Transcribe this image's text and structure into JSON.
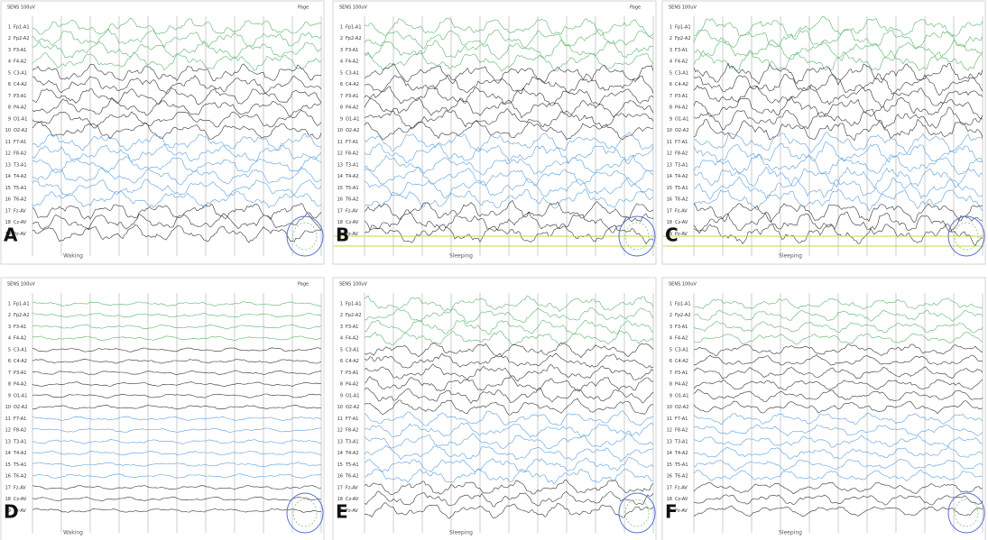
{
  "header": {
    "sens": "SENS 100uV",
    "page": "Page"
  },
  "channels": [
    {
      "n": "1",
      "label": "Fp1-A1"
    },
    {
      "n": "2",
      "label": "Fp2-A2"
    },
    {
      "n": "3",
      "label": "F3-A1"
    },
    {
      "n": "4",
      "label": "F4-A2"
    },
    {
      "n": "5",
      "label": "C3-A1"
    },
    {
      "n": "6",
      "label": "C4-A2"
    },
    {
      "n": "7",
      "label": "P3-A1"
    },
    {
      "n": "8",
      "label": "P4-A2"
    },
    {
      "n": "9",
      "label": "O1-A1"
    },
    {
      "n": "10",
      "label": "O2-A2"
    },
    {
      "n": "11",
      "label": "F7-A1"
    },
    {
      "n": "12",
      "label": "F8-A2"
    },
    {
      "n": "13",
      "label": "T3-A1"
    },
    {
      "n": "14",
      "label": "T4-A2"
    },
    {
      "n": "15",
      "label": "T5-A1"
    },
    {
      "n": "16",
      "label": "T6-A2"
    },
    {
      "n": "17",
      "label": "Fz-AV"
    },
    {
      "n": "18",
      "label": "Cz-AV"
    },
    {
      "n": "19",
      "label": "Pz-AV"
    }
  ],
  "panels": [
    {
      "letter": "A",
      "state": "Waking"
    },
    {
      "letter": "B",
      "state": "Sleeping"
    },
    {
      "letter": "C",
      "state": "Sleeping"
    },
    {
      "letter": "D",
      "state": "Waking"
    },
    {
      "letter": "E",
      "state": "Sleeping"
    },
    {
      "letter": "F",
      "state": "Sleeping"
    }
  ]
}
